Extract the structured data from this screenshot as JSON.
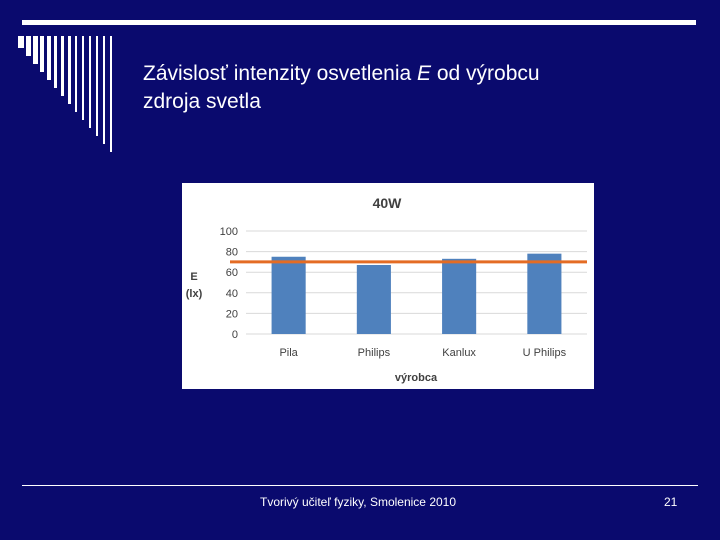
{
  "slide": {
    "title_part1": "Závislosť intenzity osvetlenia ",
    "title_var": "E",
    "title_part2": " od výrobcu",
    "title_line2": "zdroja svetla",
    "footer_text": "Tvorivý učiteľ fyziky, Smolenice 2010",
    "page_number": "21"
  },
  "colors": {
    "background": "#0a0a6e",
    "bar": "#4f81bd",
    "reference_line": "#e46c24"
  },
  "chart_data": {
    "type": "bar",
    "title": "40W",
    "xlabel": "výrobca",
    "ylabel_line1": "E",
    "ylabel_line2": "(lx)",
    "categories": [
      "Pila",
      "Philips",
      "Kanlux",
      "U Philips"
    ],
    "values": [
      75,
      67,
      73,
      78
    ],
    "reference_value": 70,
    "ylim": [
      0,
      100
    ],
    "yticks": [
      0,
      20,
      40,
      60,
      80,
      100
    ],
    "grid": true,
    "legend": "none"
  }
}
